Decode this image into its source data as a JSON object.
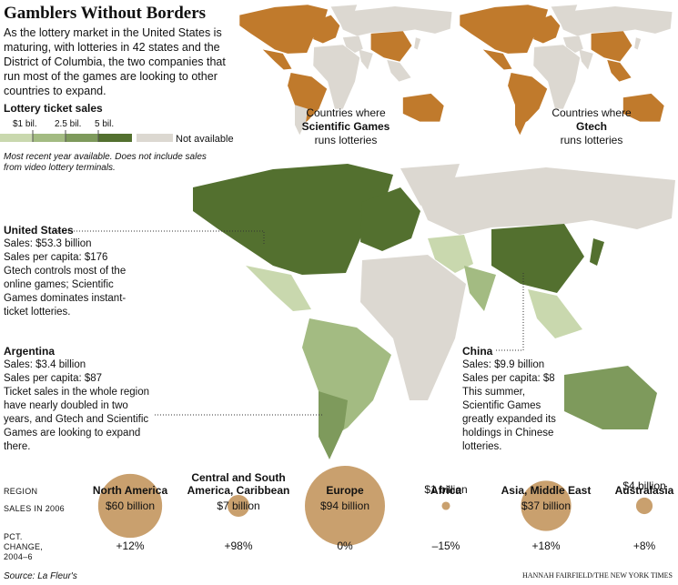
{
  "header": {
    "title": "Gamblers Without Borders",
    "intro": "As the lottery market in the United States is maturing, with lotteries in 42 states and the District of Columbia, the two companies that run most of the games are looking to other countries to expand."
  },
  "legend": {
    "title": "Lottery ticket sales",
    "ticks": [
      "$1 bil.",
      "2.5 bil.",
      "5 bil."
    ],
    "colors": [
      "#c9d8ae",
      "#a3bb82",
      "#7e9a5c",
      "#53702f"
    ],
    "na_label": "Not available",
    "na_color": "#dcd8d1",
    "note": "Most recent year available. Does not include sales from video lottery terminals."
  },
  "inset_maps": [
    {
      "caption": "Countries where",
      "company": "Scientific Games",
      "caption_end": "runs lotteries",
      "color": "#c07a2c"
    },
    {
      "caption": "Countries where",
      "company": "Gtech",
      "caption_end": "runs lotteries",
      "color": "#c07a2c"
    }
  ],
  "callouts": [
    {
      "title": "United States",
      "lines": [
        "Sales: $53.3 billion",
        "Sales per capita: $176",
        "Gtech controls most of the online games; Scientific Games dominates instant-ticket lotteries."
      ]
    },
    {
      "title": "Argentina",
      "lines": [
        "Sales: $3.4 billion",
        "Sales per capita: $87",
        "Ticket sales in the whole region have nearly doubled in two years, and Gtech and Scientific Games are looking to expand there."
      ]
    },
    {
      "title": "China",
      "lines": [
        "Sales: $9.9 billion",
        "Sales per capita: $8",
        "This summer, Scientific Games greatly expanded its holdings in Chinese lotteries."
      ]
    }
  ],
  "regions": {
    "row_labels": [
      "REGION",
      "SALES IN 2006",
      "PCT. CHANGE, 2004–6"
    ],
    "bubble_color": "#c9a06e",
    "items": [
      {
        "name": "North America",
        "sales": 60,
        "sales_label": "$60 billion",
        "change": "+12%"
      },
      {
        "name": "Central and South America, Caribbean",
        "sales": 7,
        "sales_label": "$7 billion",
        "change": "+98%"
      },
      {
        "name": "Europe",
        "sales": 94,
        "sales_label": "$94 billion",
        "change": "0%"
      },
      {
        "name": "Africa",
        "sales": 1,
        "sales_label": "$1 billion",
        "change": "–15%"
      },
      {
        "name": "Asia, Middle East",
        "sales": 37,
        "sales_label": "$37 billion",
        "change": "+18%"
      },
      {
        "name": "Australasia",
        "sales": 4,
        "sales_label": "$4 billion",
        "change": "+8%"
      }
    ]
  },
  "footer": {
    "source": "Source: La Fleur's",
    "credit": "HANNAH FAIRFIELD/THE NEW YORK TIMES"
  }
}
